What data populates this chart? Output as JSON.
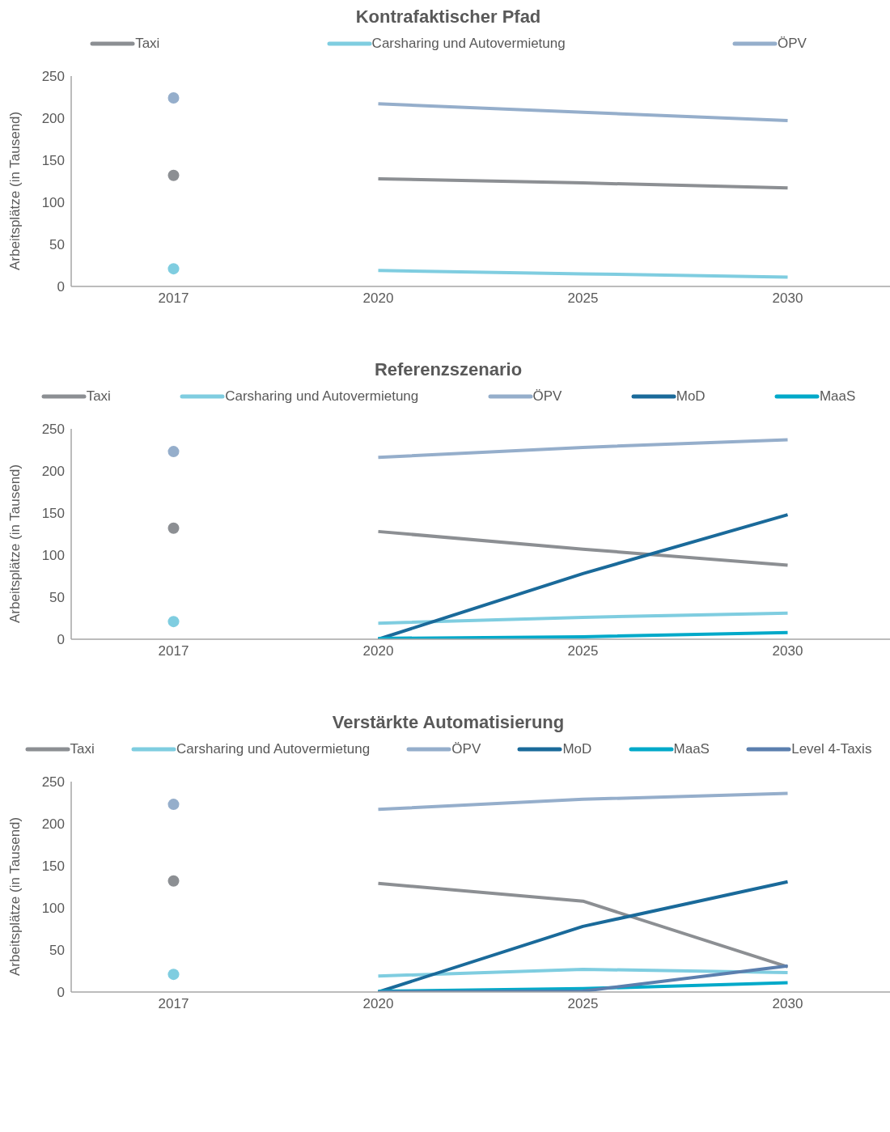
{
  "chart_data": [
    {
      "type": "line",
      "title": "Kontrafaktischer Pfad",
      "ylabel": "Arbeitsplätze (in Tausend)",
      "categories": [
        "2017",
        "2020",
        "2025",
        "2030"
      ],
      "ylim": [
        0,
        250
      ],
      "yticks": [
        0,
        50,
        100,
        150,
        200,
        250
      ],
      "legend": "top",
      "grid": false,
      "series": [
        {
          "name": "Taxi",
          "color": "#8c8f93",
          "values": [
            null,
            128,
            123,
            117
          ]
        },
        {
          "name": "Carsharing und Autovermietung",
          "color": "#7fcde0",
          "values": [
            null,
            19,
            15,
            11
          ]
        },
        {
          "name": "ÖPV",
          "color": "#95aecb",
          "values": [
            null,
            217,
            207,
            197
          ]
        },
        {
          "type": "scatter",
          "color": "#8c8f93",
          "values": [
            132,
            null,
            null,
            null
          ]
        },
        {
          "type": "scatter",
          "color": "#7fcde0",
          "values": [
            21,
            null,
            null,
            null
          ]
        },
        {
          "type": "scatter",
          "color": "#95aecb",
          "values": [
            224,
            null,
            null,
            null
          ]
        }
      ]
    },
    {
      "type": "line",
      "title": "Referenzszenario",
      "ylabel": "Arbeitsplätze (in Tausend)",
      "categories": [
        "2017",
        "2020",
        "2025",
        "2030"
      ],
      "ylim": [
        0,
        250
      ],
      "yticks": [
        0,
        50,
        100,
        150,
        200,
        250
      ],
      "legend": "top",
      "grid": false,
      "series": [
        {
          "name": "Taxi",
          "color": "#8c8f93",
          "values": [
            null,
            128,
            107,
            88
          ]
        },
        {
          "name": "Carsharing und Autovermietung",
          "color": "#7fcde0",
          "values": [
            null,
            19,
            26,
            31
          ]
        },
        {
          "name": "ÖPV",
          "color": "#95aecb",
          "values": [
            null,
            216,
            228,
            237
          ]
        },
        {
          "name": "MoD",
          "color": "#1a6a9a",
          "values": [
            null,
            0,
            78,
            148
          ]
        },
        {
          "name": "MaaS",
          "color": "#00a9c9",
          "values": [
            null,
            1,
            3,
            8
          ]
        },
        {
          "type": "scatter",
          "color": "#8c8f93",
          "values": [
            132,
            null,
            null,
            null
          ]
        },
        {
          "type": "scatter",
          "color": "#7fcde0",
          "values": [
            21,
            null,
            null,
            null
          ]
        },
        {
          "type": "scatter",
          "color": "#95aecb",
          "values": [
            223,
            null,
            null,
            null
          ]
        }
      ]
    },
    {
      "type": "line",
      "title": "Verstärkte Automatisierung",
      "ylabel": "Arbeitsplätze (in Tausend)",
      "categories": [
        "2017",
        "2020",
        "2025",
        "2030"
      ],
      "ylim": [
        0,
        250
      ],
      "yticks": [
        0,
        50,
        100,
        150,
        200,
        250
      ],
      "legend": "top",
      "grid": false,
      "series": [
        {
          "name": "Taxi",
          "color": "#8c8f93",
          "values": [
            null,
            129,
            108,
            30
          ]
        },
        {
          "name": "Carsharing und Autovermietung",
          "color": "#7fcde0",
          "values": [
            null,
            19,
            27,
            23
          ]
        },
        {
          "name": "ÖPV",
          "color": "#95aecb",
          "values": [
            null,
            217,
            229,
            236
          ]
        },
        {
          "name": "MoD",
          "color": "#1a6a9a",
          "values": [
            null,
            0,
            78,
            131
          ]
        },
        {
          "name": "MaaS",
          "color": "#00a9c9",
          "values": [
            null,
            1,
            4,
            11
          ]
        },
        {
          "name": "Level 4-Taxis",
          "color": "#5b7fae",
          "values": [
            null,
            0,
            1,
            31
          ]
        },
        {
          "type": "scatter",
          "color": "#8c8f93",
          "values": [
            132,
            null,
            null,
            null
          ]
        },
        {
          "type": "scatter",
          "color": "#7fcde0",
          "values": [
            21,
            null,
            null,
            null
          ]
        },
        {
          "type": "scatter",
          "color": "#95aecb",
          "values": [
            223,
            null,
            null,
            null
          ]
        }
      ]
    }
  ]
}
